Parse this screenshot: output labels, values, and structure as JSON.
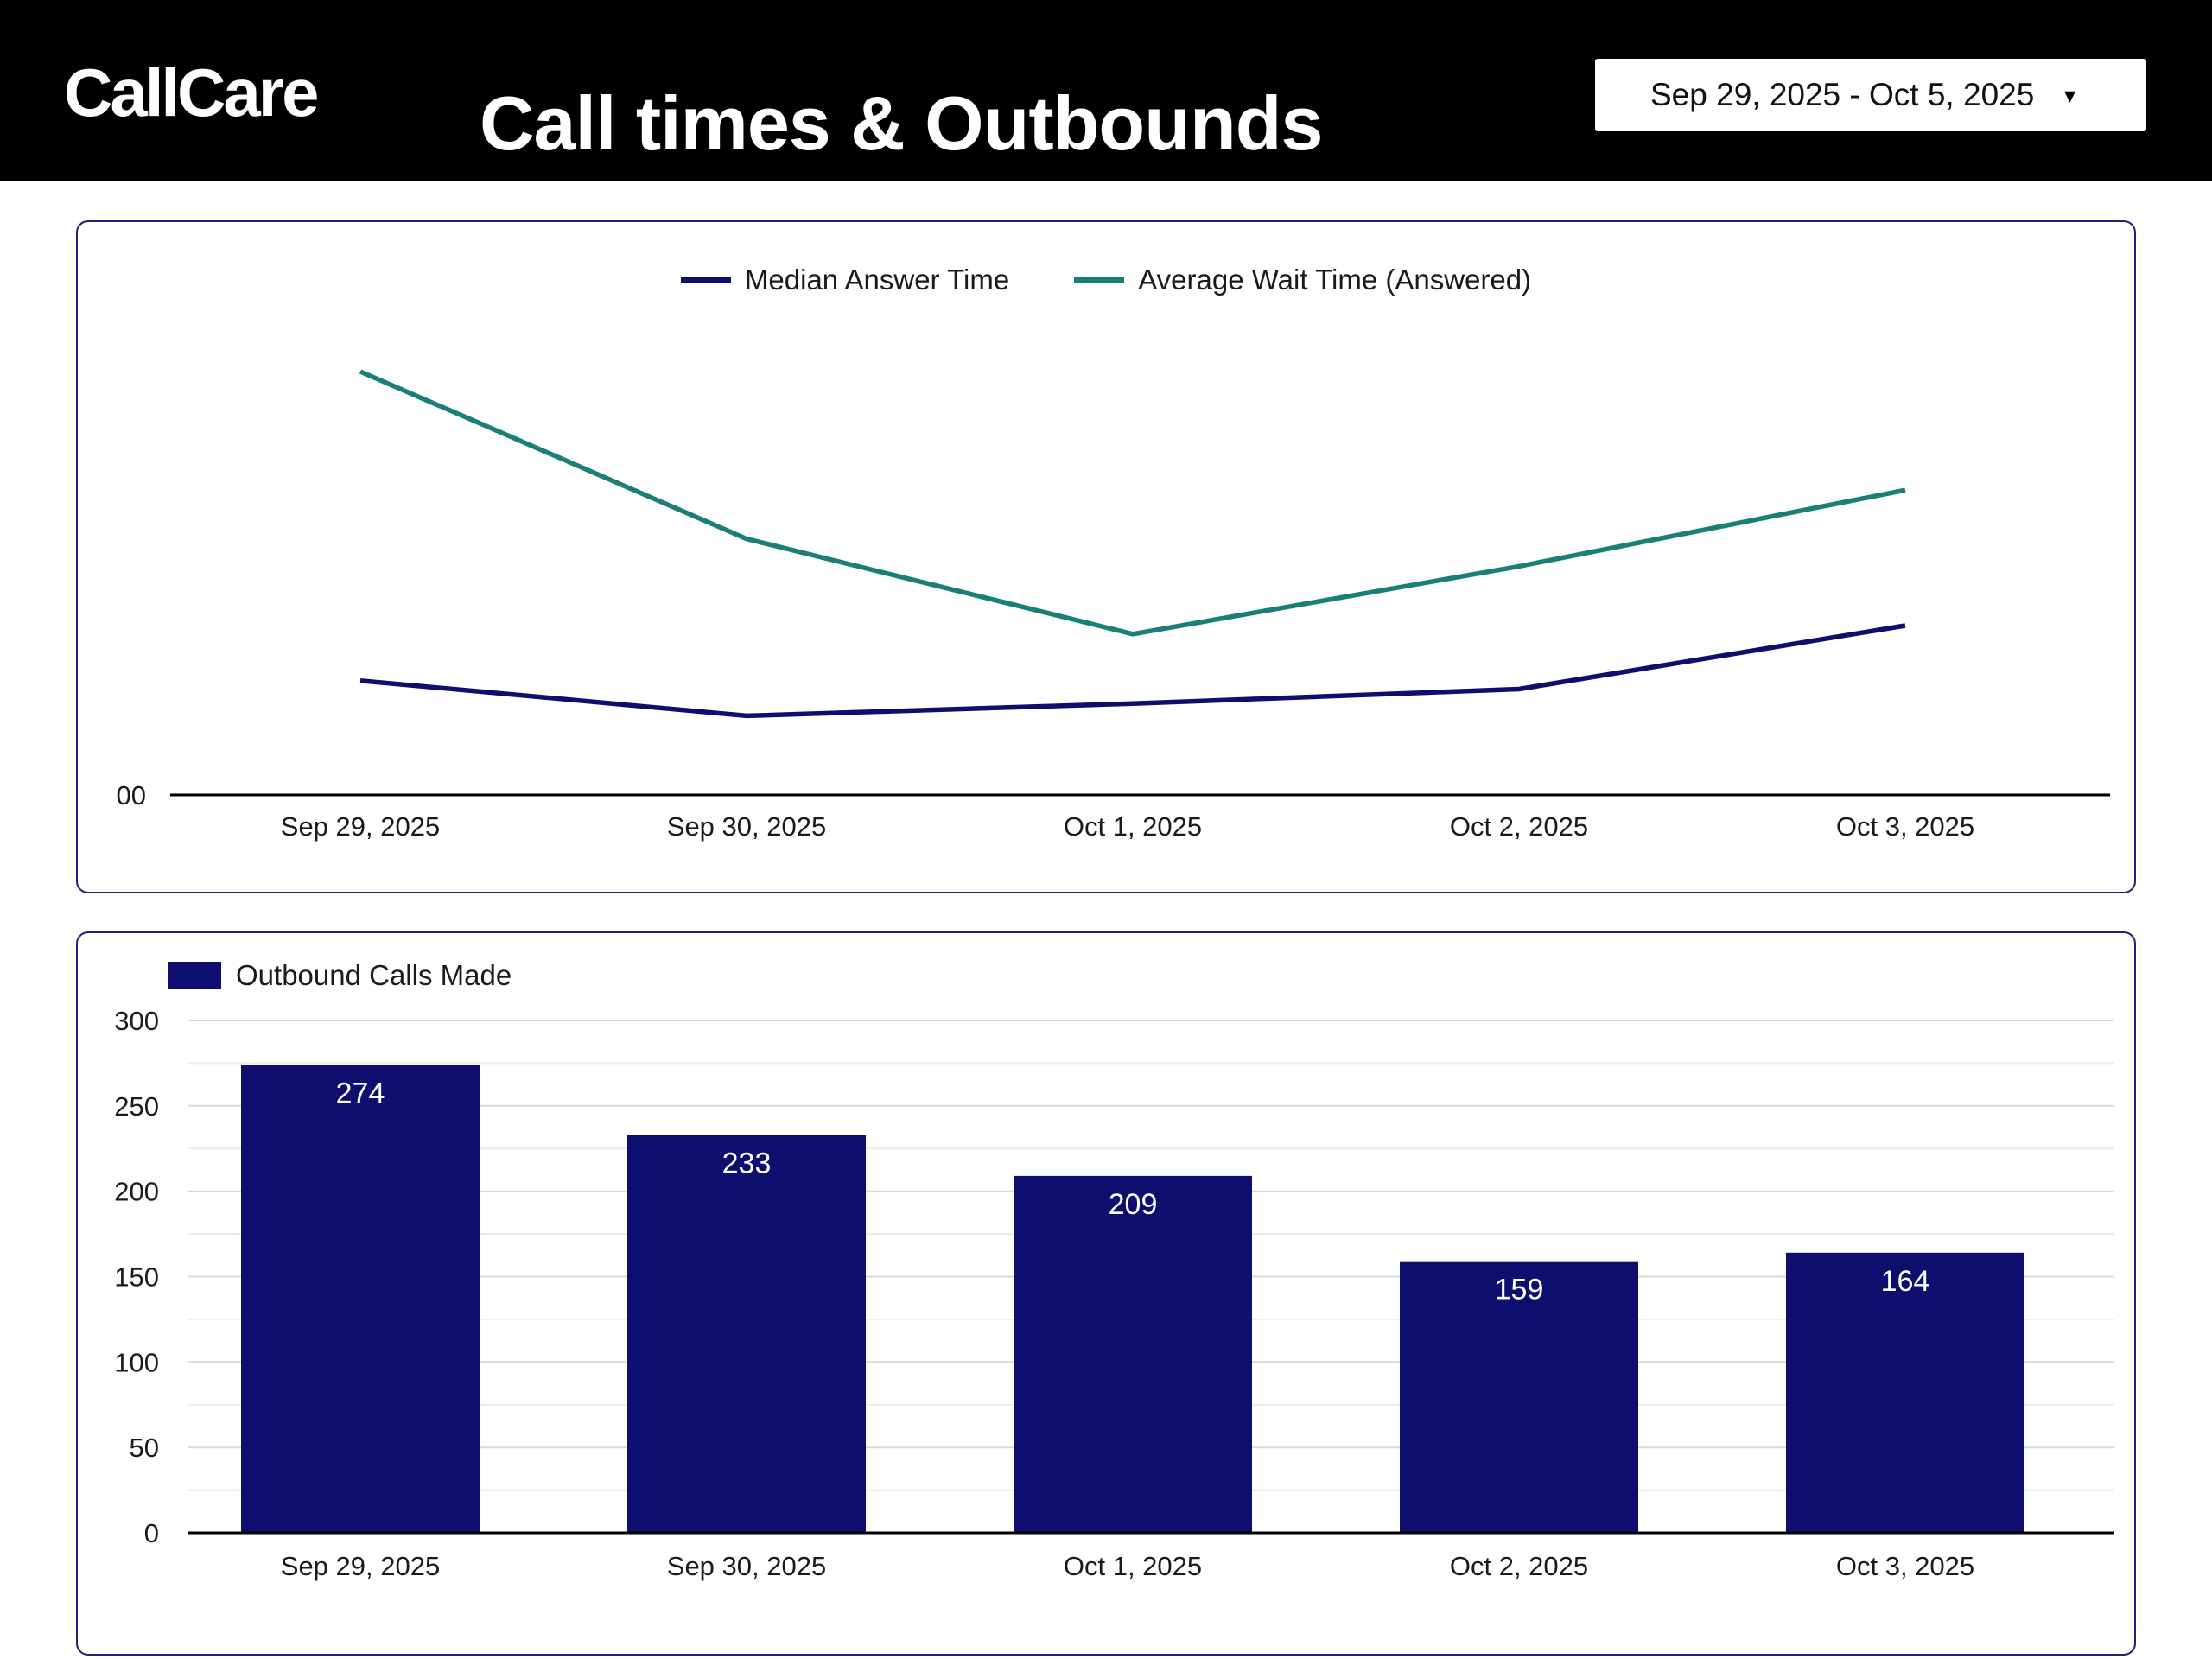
{
  "header": {
    "logo": "CallCare",
    "title": "Call times & Outbounds",
    "date_range": {
      "value": "Sep 29, 2025 - Oct 5, 2025",
      "caret_icon": "▾"
    }
  },
  "colors": {
    "navy": "#0e0e6e",
    "teal": "#1a8077",
    "grid_major": "#d9d9d9",
    "grid_minor": "#ebebeb",
    "axis": "#000000",
    "card_border": "#20207a",
    "text": "#1a1a1a",
    "bar_label": "#ffffff",
    "header_bg": "#000000",
    "header_text": "#ffffff"
  },
  "chart_data": [
    {
      "type": "line",
      "categories": [
        "Sep 29, 2025",
        "Sep 30, 2025",
        "Oct 1, 2025",
        "Oct 2, 2025",
        "Oct 3, 2025"
      ],
      "series": [
        {
          "name": "Median Answer Time",
          "color_key": "navy",
          "values": [
            27,
            18.7,
            21.6,
            25,
            40
          ]
        },
        {
          "name": "Average Wait Time (Answered)",
          "color_key": "teal",
          "values": [
            100,
            60.5,
            38,
            54,
            72
          ]
        }
      ],
      "values_are_estimates": true,
      "y_axis_tick_label": "00",
      "ylim": [
        0,
        120
      ],
      "grid": false,
      "legend_position": "top-center"
    },
    {
      "type": "bar",
      "categories": [
        "Sep 29, 2025",
        "Sep 30, 2025",
        "Oct 1, 2025",
        "Oct 2, 2025",
        "Oct 3, 2025"
      ],
      "series": [
        {
          "name": "Outbound Calls Made",
          "color_key": "navy",
          "values": [
            274,
            233,
            209,
            159,
            164
          ]
        }
      ],
      "yticks": [
        0,
        50,
        100,
        150,
        200,
        250,
        300
      ],
      "minor_grid_step": 25,
      "ylim": [
        0,
        300
      ],
      "grid": true,
      "legend_position": "top-left",
      "data_labels": "inside-top-white"
    }
  ]
}
